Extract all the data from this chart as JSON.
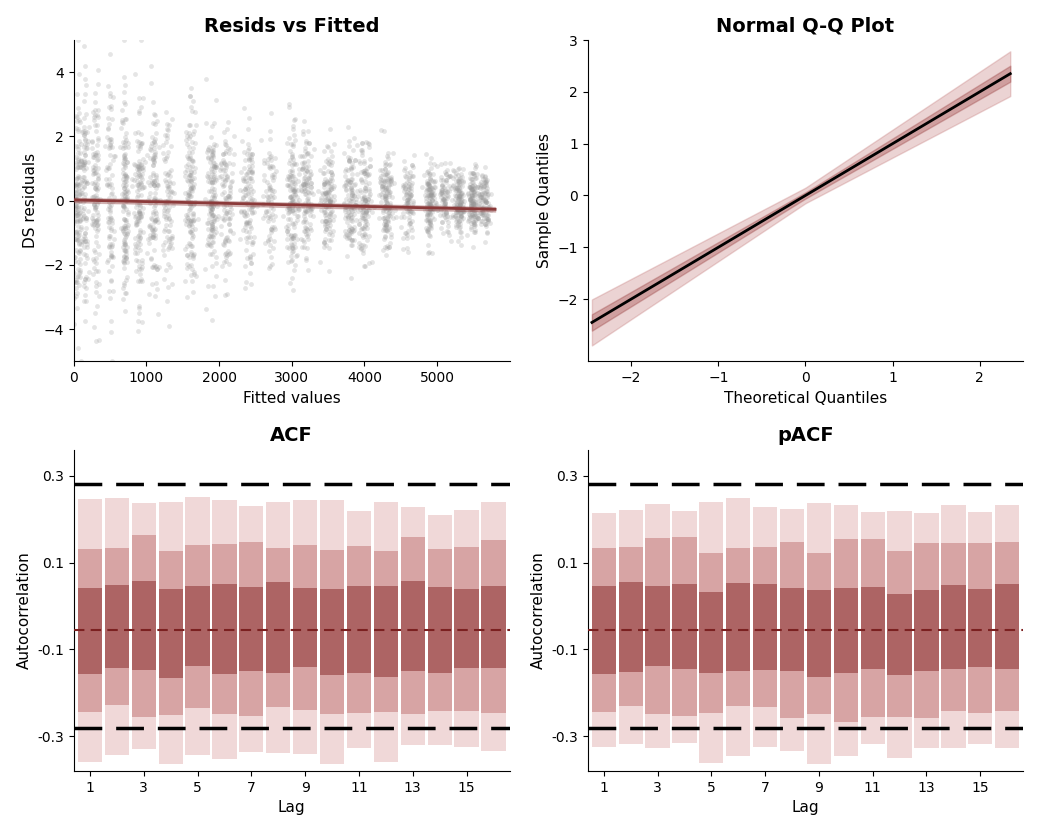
{
  "title_resid": "Resids vs Fitted",
  "title_qq": "Normal Q-Q Plot",
  "title_acf": "ACF",
  "title_pacf": "pACF",
  "xlabel_resid": "Fitted values",
  "ylabel_resid": "DS residuals",
  "xlabel_qq": "Theoretical Quantiles",
  "ylabel_qq": "Sample Quantiles",
  "xlabel_acf": "Lag",
  "ylabel_acf": "Autocorrelation",
  "xlabel_pacf": "Lag",
  "ylabel_pacf": "Autocorrelation",
  "scatter_color": "#999999",
  "smooth_color": "#8B3A3A",
  "qq_line_color": "#000000",
  "acf_line_color": "#7B2020",
  "dashed_line_color": "#000000",
  "ci_level": 0.28,
  "acf_mean": -0.055,
  "pacf_mean": -0.055,
  "n_lags": 16,
  "fitted_xlim": [
    0,
    6000
  ],
  "fitted_ylim": [
    -5,
    5
  ],
  "qq_xlim": [
    -2.5,
    2.5
  ],
  "qq_ylim": [
    -3.2,
    3.0
  ],
  "acf_ylim": [
    -0.38,
    0.36
  ],
  "title_fontsize": 14,
  "label_fontsize": 11,
  "tick_fontsize": 10
}
